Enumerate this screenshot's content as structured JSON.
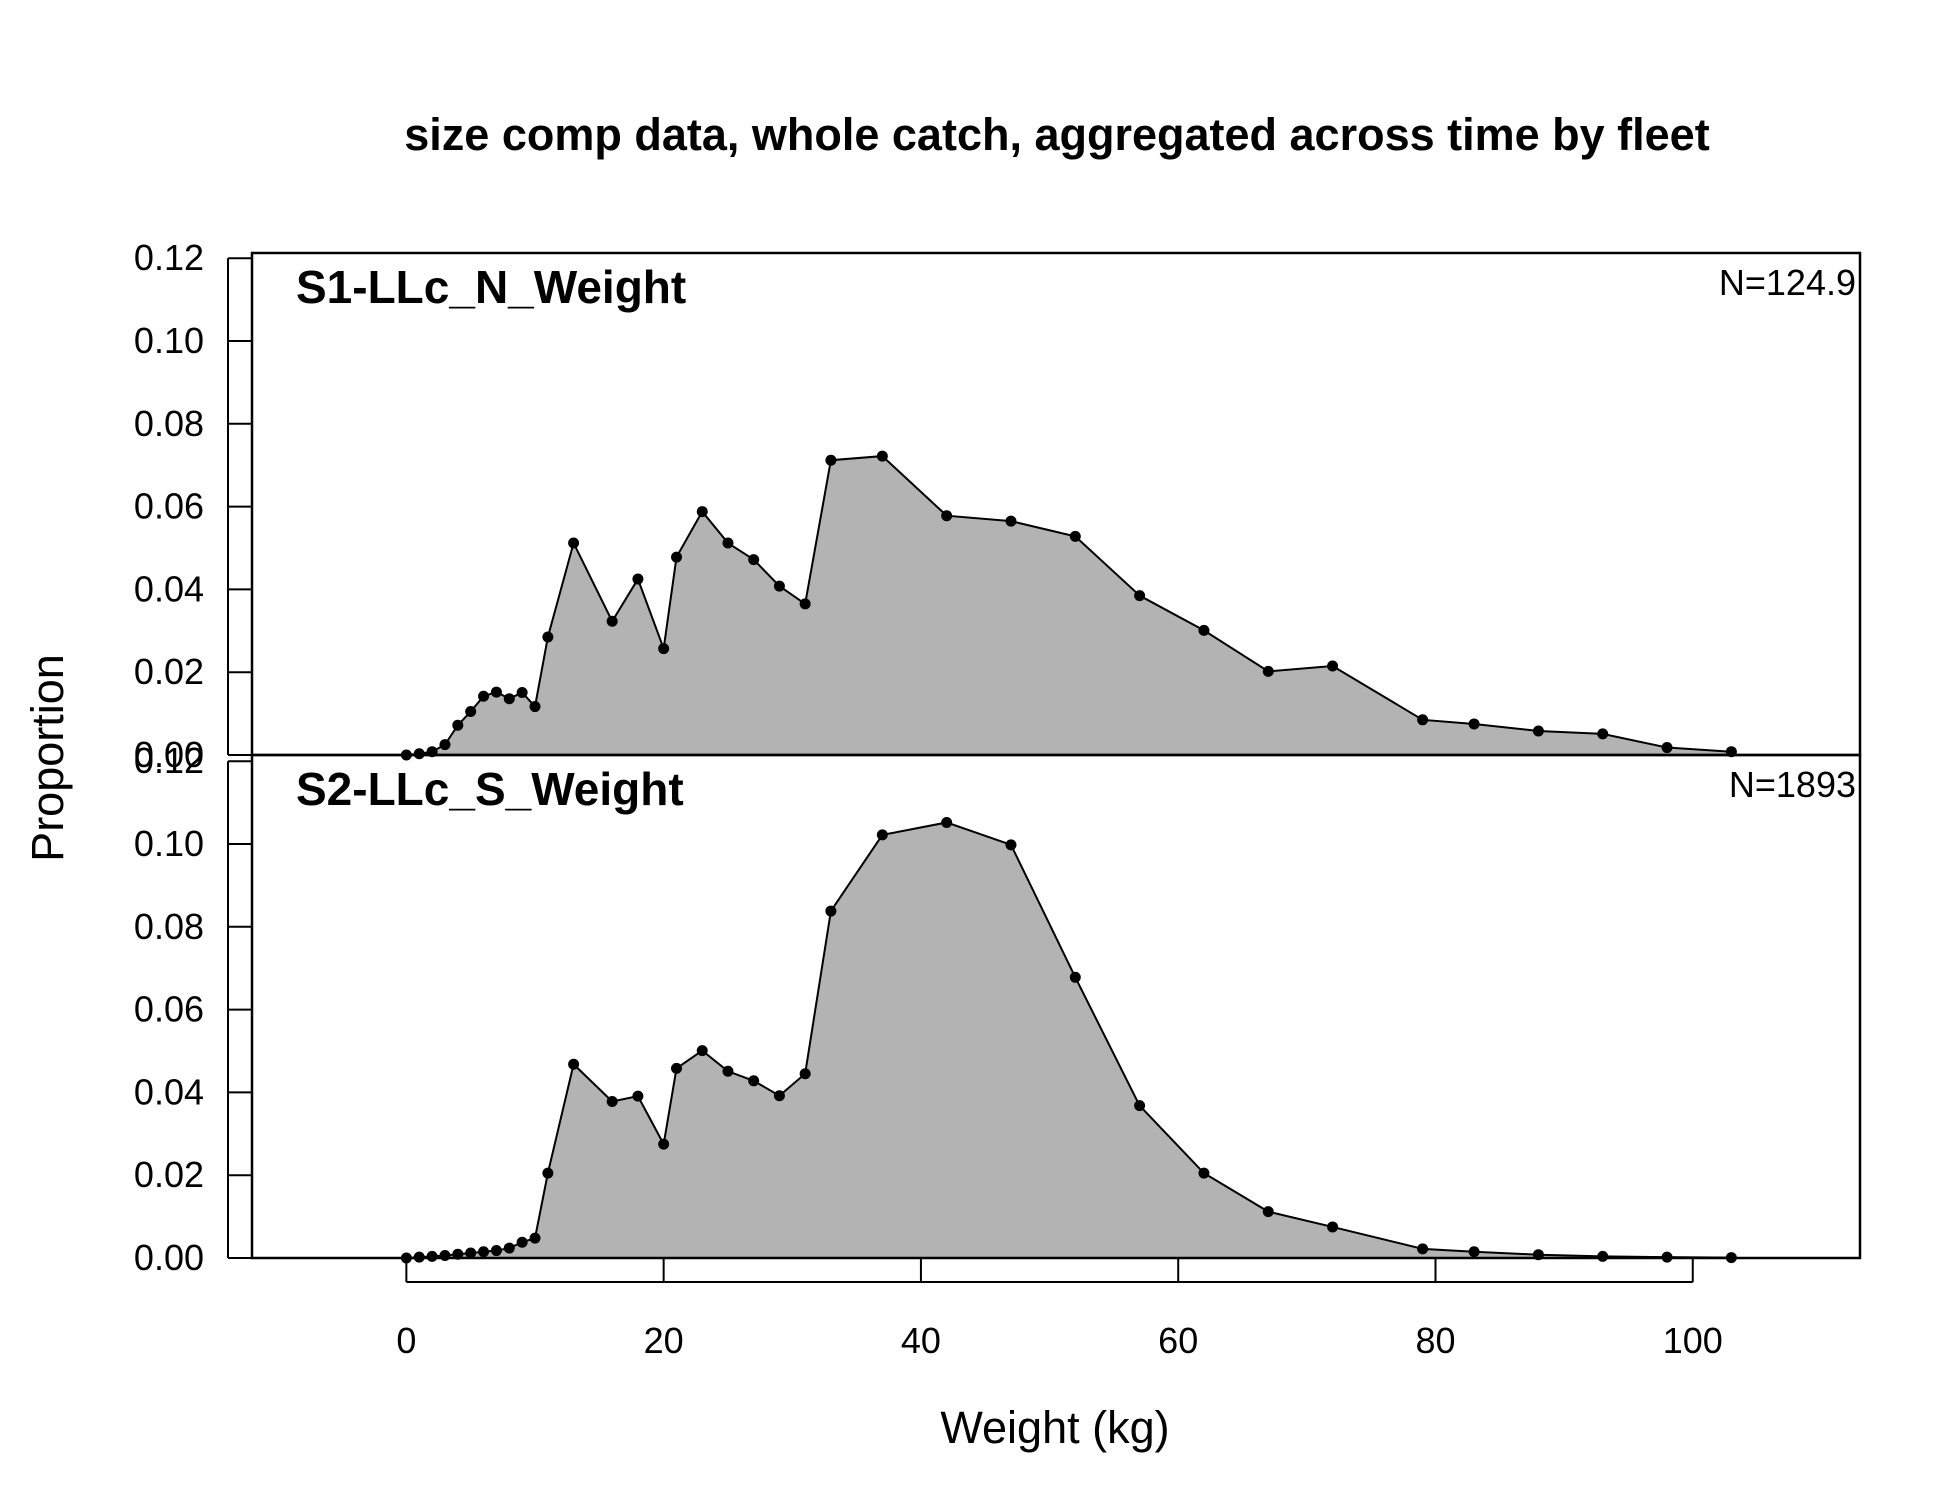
{
  "title": "size comp data, whole catch, aggregated across time by fleet",
  "chart_data": {
    "type": "area",
    "title": "size comp data, whole catch, aggregated across time by fleet",
    "xlabel": "Weight (kg)",
    "ylabel": "Proportion",
    "xlim": [
      -12,
      113
    ],
    "x_ticks": [
      "0",
      "20",
      "40",
      "60",
      "80",
      "100"
    ],
    "y_ticks": [
      "0.00",
      "0.02",
      "0.04",
      "0.06",
      "0.08",
      "0.10",
      "0.12"
    ],
    "ylim": [
      0,
      0.121
    ],
    "grid": false,
    "colors": {
      "fill": "#b3b3b3",
      "line": "#000000"
    },
    "panels": [
      {
        "name": "S1-LLc_N_Weight",
        "n_label": "N=124.9",
        "x": [
          0,
          1,
          2,
          3,
          4,
          5,
          6,
          7,
          8,
          9,
          10,
          11,
          13,
          16,
          18,
          20,
          21,
          23,
          25,
          27,
          29,
          31,
          33,
          37,
          42,
          47,
          52,
          57,
          62,
          67,
          72,
          79,
          83,
          88,
          93,
          98,
          103
        ],
        "values": [
          0.0,
          0.0003,
          0.0008,
          0.0025,
          0.0072,
          0.0105,
          0.0142,
          0.0152,
          0.0136,
          0.0151,
          0.0117,
          0.0285,
          0.0512,
          0.0323,
          0.0425,
          0.0257,
          0.0478,
          0.0588,
          0.0512,
          0.0472,
          0.0408,
          0.0365,
          0.0712,
          0.0722,
          0.0578,
          0.0565,
          0.0528,
          0.0385,
          0.0301,
          0.0202,
          0.0215,
          0.0085,
          0.0075,
          0.0058,
          0.0051,
          0.0018,
          0.0008
        ]
      },
      {
        "name": "S2-LLc_S_Weight",
        "n_label": "N=1893",
        "x": [
          0,
          1,
          2,
          3,
          4,
          5,
          6,
          7,
          8,
          9,
          10,
          11,
          13,
          16,
          18,
          20,
          21,
          23,
          25,
          27,
          29,
          31,
          33,
          37,
          42,
          47,
          52,
          57,
          62,
          67,
          72,
          79,
          83,
          88,
          93,
          98,
          103
        ],
        "values": [
          0.0,
          0.0002,
          0.0004,
          0.0006,
          0.0009,
          0.0012,
          0.0015,
          0.0018,
          0.0024,
          0.0038,
          0.0048,
          0.0205,
          0.0468,
          0.0378,
          0.0391,
          0.0275,
          0.0458,
          0.0501,
          0.0451,
          0.0428,
          0.0392,
          0.0445,
          0.0838,
          0.1022,
          0.1052,
          0.0998,
          0.0678,
          0.0368,
          0.0205,
          0.0112,
          0.0075,
          0.0022,
          0.0015,
          0.0008,
          0.0004,
          0.0002,
          0.0001
        ]
      }
    ]
  }
}
